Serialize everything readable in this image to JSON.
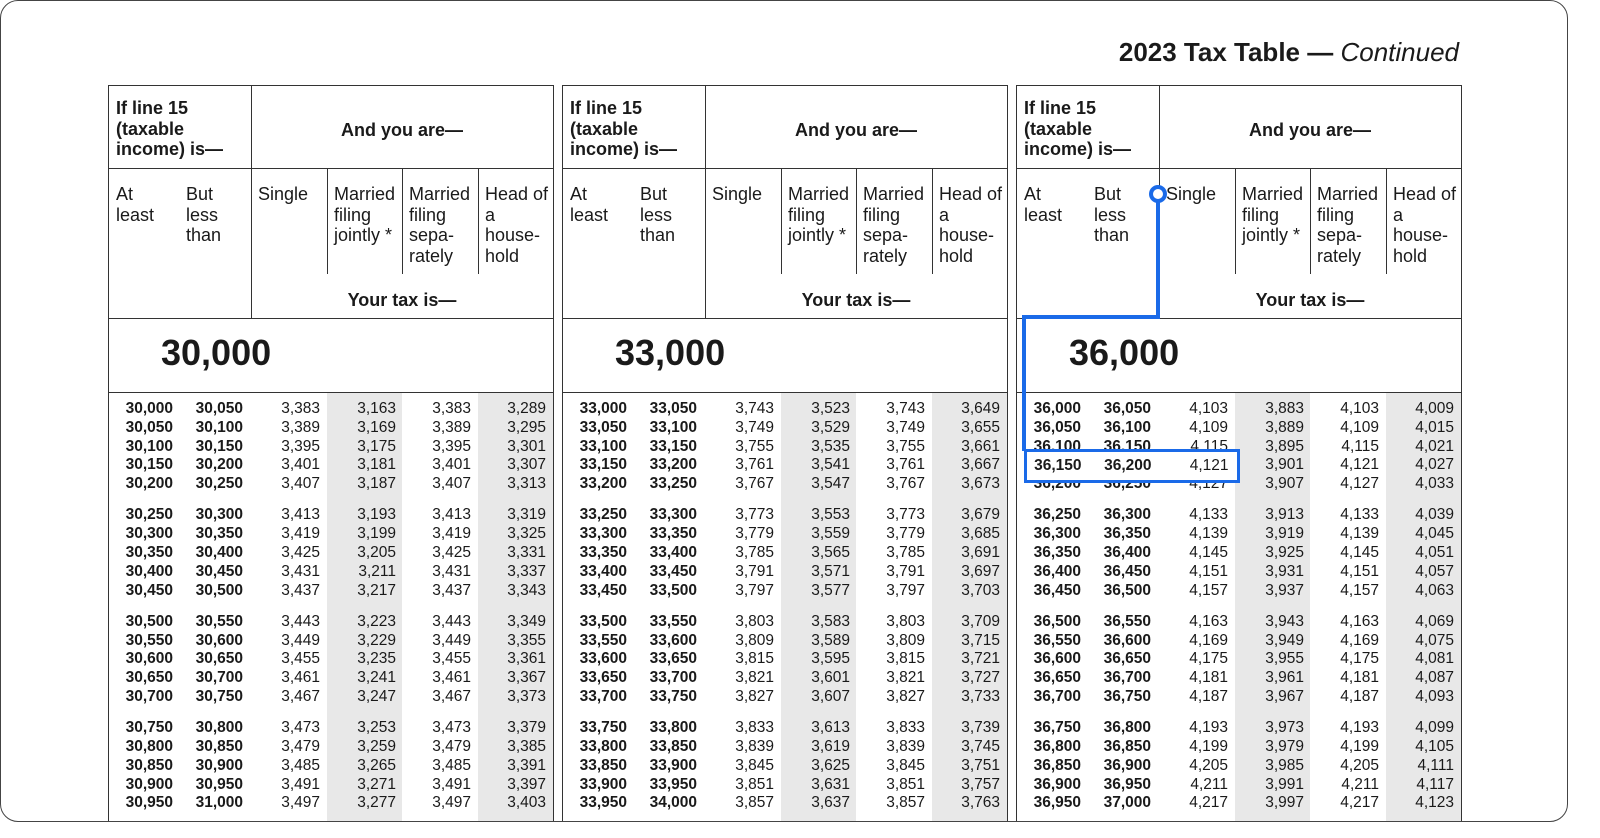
{
  "title": {
    "main": "2023 Tax Table — ",
    "continued": "Continued"
  },
  "headers": {
    "income": "If line 15 (taxable income) is—",
    "and_you_are": "And you are—",
    "at_least": "At least",
    "but_less_than": "But less than",
    "single": "Single",
    "mfj": "Married filing jointly *",
    "mfs": "Married filing sepa- rately",
    "hoh": "Head of a house- hold",
    "your_tax": "Your tax is—"
  },
  "highlight": {
    "color": "#1a6ae8",
    "panel": 2,
    "row": 3,
    "columns": [
      "at_least",
      "but_less_than",
      "single"
    ]
  },
  "panels": [
    {
      "bracket": "30,000",
      "rows": [
        [
          "30,000",
          "30,050",
          "3,383",
          "3,163",
          "3,383",
          "3,289"
        ],
        [
          "30,050",
          "30,100",
          "3,389",
          "3,169",
          "3,389",
          "3,295"
        ],
        [
          "30,100",
          "30,150",
          "3,395",
          "3,175",
          "3,395",
          "3,301"
        ],
        [
          "30,150",
          "30,200",
          "3,401",
          "3,181",
          "3,401",
          "3,307"
        ],
        [
          "30,200",
          "30,250",
          "3,407",
          "3,187",
          "3,407",
          "3,313"
        ],
        [
          "30,250",
          "30,300",
          "3,413",
          "3,193",
          "3,413",
          "3,319"
        ],
        [
          "30,300",
          "30,350",
          "3,419",
          "3,199",
          "3,419",
          "3,325"
        ],
        [
          "30,350",
          "30,400",
          "3,425",
          "3,205",
          "3,425",
          "3,331"
        ],
        [
          "30,400",
          "30,450",
          "3,431",
          "3,211",
          "3,431",
          "3,337"
        ],
        [
          "30,450",
          "30,500",
          "3,437",
          "3,217",
          "3,437",
          "3,343"
        ],
        [
          "30,500",
          "30,550",
          "3,443",
          "3,223",
          "3,443",
          "3,349"
        ],
        [
          "30,550",
          "30,600",
          "3,449",
          "3,229",
          "3,449",
          "3,355"
        ],
        [
          "30,600",
          "30,650",
          "3,455",
          "3,235",
          "3,455",
          "3,361"
        ],
        [
          "30,650",
          "30,700",
          "3,461",
          "3,241",
          "3,461",
          "3,367"
        ],
        [
          "30,700",
          "30,750",
          "3,467",
          "3,247",
          "3,467",
          "3,373"
        ],
        [
          "30,750",
          "30,800",
          "3,473",
          "3,253",
          "3,473",
          "3,379"
        ],
        [
          "30,800",
          "30,850",
          "3,479",
          "3,259",
          "3,479",
          "3,385"
        ],
        [
          "30,850",
          "30,900",
          "3,485",
          "3,265",
          "3,485",
          "3,391"
        ],
        [
          "30,900",
          "30,950",
          "3,491",
          "3,271",
          "3,491",
          "3,397"
        ],
        [
          "30,950",
          "31,000",
          "3,497",
          "3,277",
          "3,497",
          "3,403"
        ]
      ]
    },
    {
      "bracket": "33,000",
      "rows": [
        [
          "33,000",
          "33,050",
          "3,743",
          "3,523",
          "3,743",
          "3,649"
        ],
        [
          "33,050",
          "33,100",
          "3,749",
          "3,529",
          "3,749",
          "3,655"
        ],
        [
          "33,100",
          "33,150",
          "3,755",
          "3,535",
          "3,755",
          "3,661"
        ],
        [
          "33,150",
          "33,200",
          "3,761",
          "3,541",
          "3,761",
          "3,667"
        ],
        [
          "33,200",
          "33,250",
          "3,767",
          "3,547",
          "3,767",
          "3,673"
        ],
        [
          "33,250",
          "33,300",
          "3,773",
          "3,553",
          "3,773",
          "3,679"
        ],
        [
          "33,300",
          "33,350",
          "3,779",
          "3,559",
          "3,779",
          "3,685"
        ],
        [
          "33,350",
          "33,400",
          "3,785",
          "3,565",
          "3,785",
          "3,691"
        ],
        [
          "33,400",
          "33,450",
          "3,791",
          "3,571",
          "3,791",
          "3,697"
        ],
        [
          "33,450",
          "33,500",
          "3,797",
          "3,577",
          "3,797",
          "3,703"
        ],
        [
          "33,500",
          "33,550",
          "3,803",
          "3,583",
          "3,803",
          "3,709"
        ],
        [
          "33,550",
          "33,600",
          "3,809",
          "3,589",
          "3,809",
          "3,715"
        ],
        [
          "33,600",
          "33,650",
          "3,815",
          "3,595",
          "3,815",
          "3,721"
        ],
        [
          "33,650",
          "33,700",
          "3,821",
          "3,601",
          "3,821",
          "3,727"
        ],
        [
          "33,700",
          "33,750",
          "3,827",
          "3,607",
          "3,827",
          "3,733"
        ],
        [
          "33,750",
          "33,800",
          "3,833",
          "3,613",
          "3,833",
          "3,739"
        ],
        [
          "33,800",
          "33,850",
          "3,839",
          "3,619",
          "3,839",
          "3,745"
        ],
        [
          "33,850",
          "33,900",
          "3,845",
          "3,625",
          "3,845",
          "3,751"
        ],
        [
          "33,900",
          "33,950",
          "3,851",
          "3,631",
          "3,851",
          "3,757"
        ],
        [
          "33,950",
          "34,000",
          "3,857",
          "3,637",
          "3,857",
          "3,763"
        ]
      ]
    },
    {
      "bracket": "36,000",
      "rows": [
        [
          "36,000",
          "36,050",
          "4,103",
          "3,883",
          "4,103",
          "4,009"
        ],
        [
          "36,050",
          "36,100",
          "4,109",
          "3,889",
          "4,109",
          "4,015"
        ],
        [
          "36,100",
          "36,150",
          "4,115",
          "3,895",
          "4,115",
          "4,021"
        ],
        [
          "36,150",
          "36,200",
          "4,121",
          "3,901",
          "4,121",
          "4,027"
        ],
        [
          "36,200",
          "36,250",
          "4,127",
          "3,907",
          "4,127",
          "4,033"
        ],
        [
          "36,250",
          "36,300",
          "4,133",
          "3,913",
          "4,133",
          "4,039"
        ],
        [
          "36,300",
          "36,350",
          "4,139",
          "3,919",
          "4,139",
          "4,045"
        ],
        [
          "36,350",
          "36,400",
          "4,145",
          "3,925",
          "4,145",
          "4,051"
        ],
        [
          "36,400",
          "36,450",
          "4,151",
          "3,931",
          "4,151",
          "4,057"
        ],
        [
          "36,450",
          "36,500",
          "4,157",
          "3,937",
          "4,157",
          "4,063"
        ],
        [
          "36,500",
          "36,550",
          "4,163",
          "3,943",
          "4,163",
          "4,069"
        ],
        [
          "36,550",
          "36,600",
          "4,169",
          "3,949",
          "4,169",
          "4,075"
        ],
        [
          "36,600",
          "36,650",
          "4,175",
          "3,955",
          "4,175",
          "4,081"
        ],
        [
          "36,650",
          "36,700",
          "4,181",
          "3,961",
          "4,181",
          "4,087"
        ],
        [
          "36,700",
          "36,750",
          "4,187",
          "3,967",
          "4,187",
          "4,093"
        ],
        [
          "36,750",
          "36,800",
          "4,193",
          "3,973",
          "4,193",
          "4,099"
        ],
        [
          "36,800",
          "36,850",
          "4,199",
          "3,979",
          "4,199",
          "4,105"
        ],
        [
          "36,850",
          "36,900",
          "4,205",
          "3,985",
          "4,205",
          "4,111"
        ],
        [
          "36,900",
          "36,950",
          "4,211",
          "3,991",
          "4,211",
          "4,117"
        ],
        [
          "36,950",
          "37,000",
          "4,217",
          "3,997",
          "4,217",
          "4,123"
        ]
      ]
    }
  ]
}
